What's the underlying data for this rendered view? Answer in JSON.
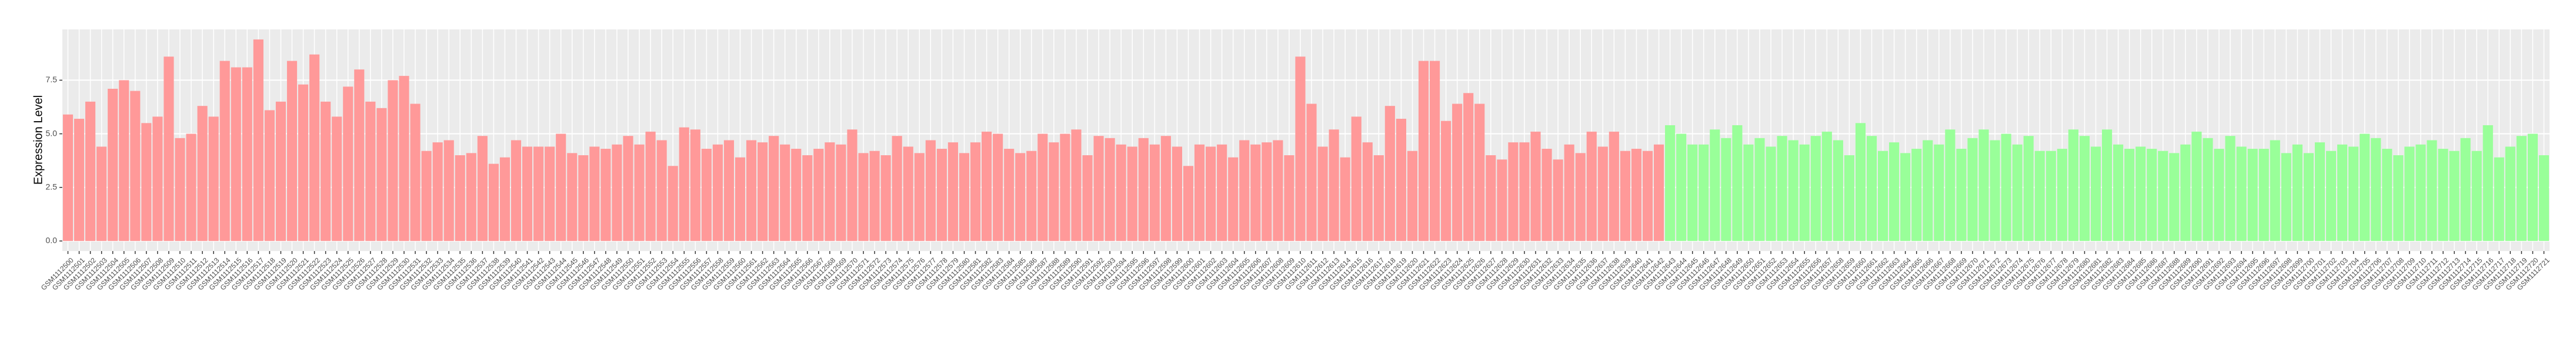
{
  "chart_data": {
    "type": "bar",
    "y_label": "Expression Level",
    "categories": [
      "GSM1112500",
      "GSM1112501",
      "GSM1112502",
      "GSM1112503",
      "GSM1112504",
      "GSM1112505",
      "GSM1112506",
      "GSM1112507",
      "GSM1112508",
      "GSM1112509",
      "GSM1112510",
      "GSM1112511",
      "GSM1112512",
      "GSM1112513",
      "GSM1112514",
      "GSM1112515",
      "GSM1112516",
      "GSM1112517",
      "GSM1112518",
      "GSM1112519",
      "GSM1112520",
      "GSM1112521",
      "GSM1112522",
      "GSM1112523",
      "GSM1112524",
      "GSM1112525",
      "GSM1112526",
      "GSM1112527",
      "GSM1112528",
      "GSM1112529",
      "GSM1112530",
      "GSM1112531",
      "GSM1112532",
      "GSM1112533",
      "GSM1112534",
      "GSM1112535",
      "GSM1112536",
      "GSM1112537",
      "GSM1112538",
      "GSM1112539",
      "GSM1112540",
      "GSM1112541",
      "GSM1112542",
      "GSM1112543",
      "GSM1112544",
      "GSM1112545",
      "GSM1112546",
      "GSM1112547",
      "GSM1112548",
      "GSM1112549",
      "GSM1112550",
      "GSM1112551",
      "GSM1112552",
      "GSM1112553",
      "GSM1112554",
      "GSM1112555",
      "GSM1112556",
      "GSM1112557",
      "GSM1112558",
      "GSM1112559",
      "GSM1112560",
      "GSM1112561",
      "GSM1112562",
      "GSM1112563",
      "GSM1112564",
      "GSM1112565",
      "GSM1112566",
      "GSM1112567",
      "GSM1112568",
      "GSM1112569",
      "GSM1112570",
      "GSM1112571",
      "GSM1112572",
      "GSM1112573",
      "GSM1112574",
      "GSM1112575",
      "GSM1112576",
      "GSM1112577",
      "GSM1112578",
      "GSM1112579",
      "GSM1112580",
      "GSM1112581",
      "GSM1112582",
      "GSM1112583",
      "GSM1112584",
      "GSM1112585",
      "GSM1112586",
      "GSM1112587",
      "GSM1112588",
      "GSM1112589",
      "GSM1112590",
      "GSM1112591",
      "GSM1112592",
      "GSM1112593",
      "GSM1112594",
      "GSM1112595",
      "GSM1112596",
      "GSM1112597",
      "GSM1112598",
      "GSM1112599",
      "GSM1112600",
      "GSM1112601",
      "GSM1112602",
      "GSM1112603",
      "GSM1112604",
      "GSM1112605",
      "GSM1112606",
      "GSM1112607",
      "GSM1112608",
      "GSM1112609",
      "GSM1112610",
      "GSM1112611",
      "GSM1112612",
      "GSM1112613",
      "GSM1112614",
      "GSM1112615",
      "GSM1112616",
      "GSM1112617",
      "GSM1112618",
      "GSM1112619",
      "GSM1112620",
      "GSM1112621",
      "GSM1112622",
      "GSM1112623",
      "GSM1112624",
      "GSM1112625",
      "GSM1112626",
      "GSM1112627",
      "GSM1112628",
      "GSM1112629",
      "GSM1112630",
      "GSM1112631",
      "GSM1112632",
      "GSM1112633",
      "GSM1112634",
      "GSM1112635",
      "GSM1112636",
      "GSM1112637",
      "GSM1112638",
      "GSM1112639",
      "GSM1112640",
      "GSM1112641",
      "GSM1112642",
      "GSM1112643",
      "GSM1112644",
      "GSM1112645",
      "GSM1112646",
      "GSM1112647",
      "GSM1112648",
      "GSM1112649",
      "GSM1112650",
      "GSM1112651",
      "GSM1112652",
      "GSM1112653",
      "GSM1112654",
      "GSM1112655",
      "GSM1112656",
      "GSM1112657",
      "GSM1112658",
      "GSM1112659",
      "GSM1112660",
      "GSM1112661",
      "GSM1112662",
      "GSM1112663",
      "GSM1112664",
      "GSM1112665",
      "GSM1112666",
      "GSM1112667",
      "GSM1112668",
      "GSM1112669",
      "GSM1112670",
      "GSM1112671",
      "GSM1112672",
      "GSM1112673",
      "GSM1112674",
      "GSM1112675",
      "GSM1112676",
      "GSM1112677",
      "GSM1112678",
      "GSM1112679",
      "GSM1112680",
      "GSM1112681",
      "GSM1112682",
      "GSM1112683",
      "GSM1112684",
      "GSM1112685",
      "GSM1112686",
      "GSM1112687",
      "GSM1112688",
      "GSM1112689",
      "GSM1112690",
      "GSM1112691",
      "GSM1112692",
      "GSM1112693",
      "GSM1112694",
      "GSM1112695",
      "GSM1112696",
      "GSM1112697",
      "GSM1112698",
      "GSM1112699",
      "GSM1112700",
      "GSM1112701",
      "GSM1112702",
      "GSM1112703",
      "GSM1112704",
      "GSM1112705",
      "GSM1112706",
      "GSM1112707",
      "GSM1112708",
      "GSM1112709",
      "GSM1112710",
      "GSM1112711",
      "GSM1112712",
      "GSM1112713",
      "GSM1112714",
      "GSM1112715",
      "GSM1112716",
      "GSM1112717",
      "GSM1112718",
      "GSM1112719",
      "GSM1112720",
      "GSM1112721"
    ],
    "series": [
      {
        "color": "#ff9999",
        "values": [
          5.9,
          5.7,
          6.5,
          4.4,
          7.1,
          7.5,
          7.0,
          5.5,
          5.8,
          8.6,
          4.8,
          5.0,
          6.3,
          5.8,
          8.4,
          8.1,
          8.1,
          9.4,
          6.1,
          6.5,
          8.4,
          7.3,
          8.7,
          6.5,
          5.8,
          7.2,
          8.0,
          6.5,
          6.2,
          7.5,
          7.7,
          6.4,
          4.2,
          4.6,
          4.7,
          4.0,
          4.1,
          4.9,
          3.6,
          3.9,
          4.7,
          4.4,
          4.4,
          4.4,
          5.0,
          4.1,
          4.0,
          4.4,
          4.3,
          4.5,
          4.9,
          4.5,
          5.1,
          4.7,
          3.5,
          5.3,
          5.2,
          4.3,
          4.5,
          4.7,
          3.9,
          4.7,
          4.6,
          4.9,
          4.5,
          4.3,
          4.0,
          4.3,
          4.6,
          4.5,
          5.2,
          4.1,
          4.2,
          4.0,
          4.9,
          4.4,
          4.1,
          4.7,
          4.3,
          4.6,
          4.1,
          4.6,
          5.1,
          5.0,
          4.3,
          4.1,
          4.2,
          5.0,
          4.6,
          5.0,
          5.2,
          4.0,
          4.9,
          4.8,
          4.5,
          4.4,
          4.8,
          4.5,
          4.9,
          4.4,
          3.5,
          4.5,
          4.4,
          4.5,
          3.9,
          4.7,
          4.5,
          4.6,
          4.7,
          4.0,
          8.6,
          6.4,
          4.4,
          5.2,
          3.9,
          5.8,
          4.6,
          4.0,
          6.3,
          5.7,
          4.2,
          8.4,
          8.4,
          5.6,
          6.4,
          6.9,
          6.4,
          4.0,
          3.8,
          4.6,
          4.6,
          5.1,
          4.3,
          3.8,
          4.5,
          4.1,
          5.1,
          4.4,
          5.1,
          4.2,
          4.3,
          4.2,
          4.5,
          null,
          null,
          null,
          null,
          null,
          null,
          null,
          null,
          null,
          null,
          null,
          null,
          null,
          null,
          null,
          null,
          null,
          null,
          null,
          null,
          null,
          null,
          null,
          null,
          null,
          null,
          null,
          null,
          null,
          null,
          null,
          null,
          null,
          null,
          null,
          null,
          null,
          null,
          null,
          null,
          null,
          null,
          null,
          null,
          null,
          null,
          null,
          null,
          null,
          null,
          null,
          null,
          null,
          null,
          null,
          null,
          null,
          null,
          null,
          null,
          null,
          null,
          null,
          null,
          null,
          null,
          null,
          null,
          null,
          null,
          null,
          null,
          null,
          null,
          null,
          null,
          null,
          null,
          null
        ]
      },
      {
        "color": "#99ff99",
        "values": [
          null,
          null,
          null,
          null,
          null,
          null,
          null,
          null,
          null,
          null,
          null,
          null,
          null,
          null,
          null,
          null,
          null,
          null,
          null,
          null,
          null,
          null,
          null,
          null,
          null,
          null,
          null,
          null,
          null,
          null,
          null,
          null,
          null,
          null,
          null,
          null,
          null,
          null,
          null,
          null,
          null,
          null,
          null,
          null,
          null,
          null,
          null,
          null,
          null,
          null,
          null,
          null,
          null,
          null,
          null,
          null,
          null,
          null,
          null,
          null,
          null,
          null,
          null,
          null,
          null,
          null,
          null,
          null,
          null,
          null,
          null,
          null,
          null,
          null,
          null,
          null,
          null,
          null,
          null,
          null,
          null,
          null,
          null,
          null,
          null,
          null,
          null,
          null,
          null,
          null,
          null,
          null,
          null,
          null,
          null,
          null,
          null,
          null,
          null,
          null,
          null,
          null,
          null,
          null,
          null,
          null,
          null,
          null,
          null,
          null,
          null,
          null,
          null,
          null,
          null,
          null,
          null,
          null,
          null,
          null,
          null,
          null,
          null,
          null,
          null,
          null,
          null,
          null,
          null,
          null,
          null,
          null,
          null,
          null,
          null,
          null,
          null,
          null,
          null,
          null,
          null,
          null,
          null,
          5.4,
          5.0,
          4.5,
          4.5,
          5.2,
          4.8,
          5.4,
          4.5,
          4.8,
          4.4,
          4.9,
          4.7,
          4.5,
          4.9,
          5.1,
          4.7,
          4.0,
          5.5,
          4.9,
          4.2,
          4.6,
          4.1,
          4.3,
          4.7,
          4.5,
          5.2,
          4.3,
          4.8,
          5.2,
          4.7,
          5.0,
          4.5,
          4.9,
          4.2,
          4.2,
          4.3,
          5.2,
          4.9,
          4.4,
          5.2,
          4.5,
          4.3,
          4.4,
          4.3,
          4.2,
          4.1,
          4.5,
          5.1,
          4.8,
          4.3,
          4.9,
          4.4,
          4.3,
          4.3,
          4.7,
          4.1,
          4.5,
          4.1,
          4.6,
          4.2,
          4.5,
          4.4,
          5.0,
          4.8,
          4.3,
          4.0,
          4.4,
          4.5,
          4.7,
          4.3,
          4.2,
          4.8,
          4.2,
          5.4,
          3.9,
          4.4,
          4.9,
          5.0,
          4.0
        ]
      }
    ],
    "ylim": [
      -0.47,
      9.87
    ],
    "yticks": [
      {
        "value": 0,
        "label": "0.0"
      },
      2.5,
      {
        "value": 5,
        "label": "5.0"
      },
      7.5
    ],
    "grid": true
  }
}
